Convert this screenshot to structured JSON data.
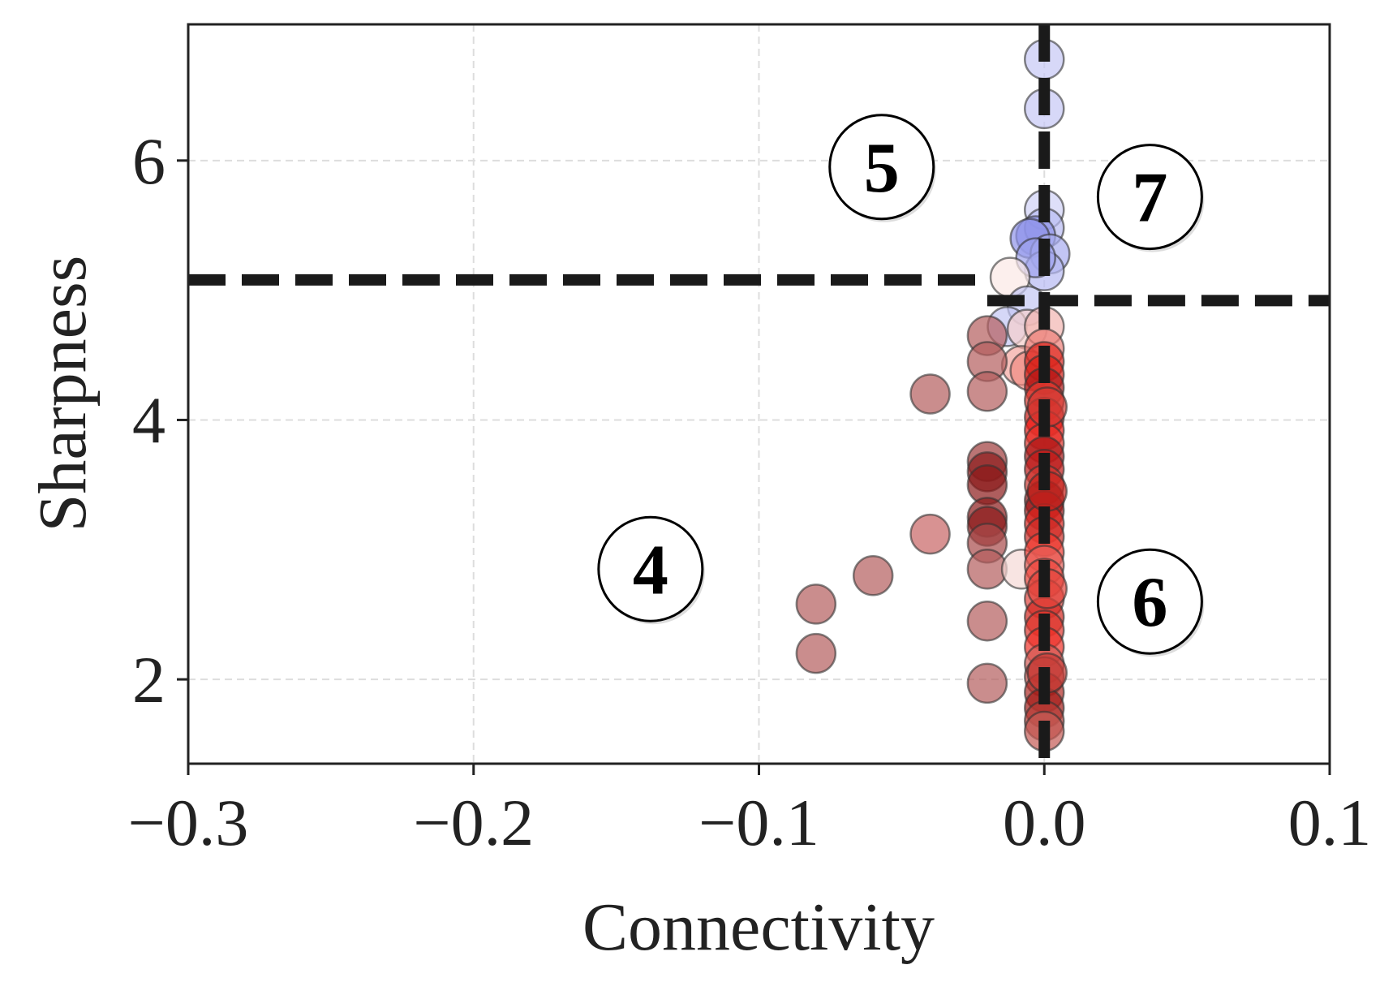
{
  "chart_data": {
    "type": "scatter",
    "xlabel": "Connectivity",
    "ylabel": "Sharpness",
    "xlim": [
      -0.3,
      0.1
    ],
    "ylim": [
      1.35,
      7.05
    ],
    "xticks": [
      -0.3,
      -0.2,
      -0.1,
      0.0,
      0.1
    ],
    "xtick_labels": [
      "−0.3",
      "−0.2",
      "−0.1",
      "0.0",
      "0.1"
    ],
    "yticks": [
      2,
      4,
      6
    ],
    "ytick_labels": [
      "2",
      "4",
      "6"
    ],
    "grid": true,
    "threshold_lines": {
      "vertical_x": 0.0,
      "horizontal_left": {
        "y": 5.08,
        "x_range": [
          -0.3,
          -0.02
        ]
      },
      "horizontal_right": {
        "y": 4.92,
        "x_range": [
          -0.02,
          0.1
        ]
      }
    },
    "region_labels": [
      {
        "text": "5",
        "x": -0.057,
        "y": 5.95
      },
      {
        "text": "7",
        "x": 0.037,
        "y": 5.72
      },
      {
        "text": "4",
        "x": -0.138,
        "y": 2.85
      },
      {
        "text": "6",
        "x": 0.037,
        "y": 2.6
      }
    ],
    "points": [
      {
        "x": 0.0,
        "y": 6.78,
        "color": "#c6c8f5"
      },
      {
        "x": 0.0,
        "y": 6.4,
        "color": "#c6c8f5"
      },
      {
        "x": 0.0,
        "y": 5.62,
        "color": "#d0d2f6"
      },
      {
        "x": 0.0,
        "y": 5.48,
        "color": "#b8bbf2"
      },
      {
        "x": -0.003,
        "y": 5.42,
        "color": "#8f93ea"
      },
      {
        "x": -0.005,
        "y": 5.4,
        "color": "#8f93ea"
      },
      {
        "x": 0.002,
        "y": 5.28,
        "color": "#a8acf0"
      },
      {
        "x": 0.0,
        "y": 5.15,
        "color": "#b6b9f2"
      },
      {
        "x": -0.003,
        "y": 5.25,
        "color": "#9ea2ee"
      },
      {
        "x": -0.012,
        "y": 5.1,
        "color": "#fbe8e6"
      },
      {
        "x": -0.006,
        "y": 4.88,
        "color": "#c3c6f4"
      },
      {
        "x": -0.013,
        "y": 4.72,
        "color": "#c3c6f4"
      },
      {
        "x": -0.006,
        "y": 4.7,
        "color": "#f5cfcc"
      },
      {
        "x": -0.008,
        "y": 4.42,
        "color": "#f3a6a0"
      },
      {
        "x": -0.005,
        "y": 4.38,
        "color": "#f08a82"
      },
      {
        "x": -0.02,
        "y": 4.65,
        "color": "#b35d5d"
      },
      {
        "x": -0.02,
        "y": 4.45,
        "color": "#b35d5d"
      },
      {
        "x": -0.02,
        "y": 4.22,
        "color": "#b35d5d"
      },
      {
        "x": -0.04,
        "y": 4.2,
        "color": "#b35d5d"
      },
      {
        "x": -0.02,
        "y": 3.68,
        "color": "#9e3b3b"
      },
      {
        "x": -0.02,
        "y": 3.6,
        "color": "#8b1a1a"
      },
      {
        "x": -0.02,
        "y": 3.5,
        "color": "#8b1a1a"
      },
      {
        "x": -0.02,
        "y": 3.25,
        "color": "#8b1a1a"
      },
      {
        "x": -0.02,
        "y": 3.18,
        "color": "#8b1a1a"
      },
      {
        "x": -0.02,
        "y": 3.05,
        "color": "#a84a4a"
      },
      {
        "x": -0.02,
        "y": 2.85,
        "color": "#b35d5d"
      },
      {
        "x": -0.02,
        "y": 2.45,
        "color": "#b35d5d"
      },
      {
        "x": -0.02,
        "y": 1.97,
        "color": "#b35d5d"
      },
      {
        "x": -0.04,
        "y": 3.12,
        "color": "#c86464"
      },
      {
        "x": -0.06,
        "y": 2.8,
        "color": "#b35d5d"
      },
      {
        "x": -0.08,
        "y": 2.58,
        "color": "#b35d5d"
      },
      {
        "x": -0.08,
        "y": 2.2,
        "color": "#b35d5d"
      },
      {
        "x": -0.008,
        "y": 2.85,
        "color": "#f5d8d5"
      },
      {
        "x": 0.0,
        "y": 4.72,
        "color": "#f2b5b0"
      },
      {
        "x": 0.0,
        "y": 4.55,
        "color": "#ec7d76"
      },
      {
        "x": 0.0,
        "y": 4.45,
        "color": "#e0281f"
      },
      {
        "x": 0.0,
        "y": 4.35,
        "color": "#d81f17"
      },
      {
        "x": 0.0,
        "y": 4.25,
        "color": "#b01515"
      },
      {
        "x": 0.0,
        "y": 4.15,
        "color": "#e63a30"
      },
      {
        "x": 0.0,
        "y": 4.02,
        "color": "#d41a14"
      },
      {
        "x": 0.0,
        "y": 3.92,
        "color": "#f01a14"
      },
      {
        "x": 0.0,
        "y": 3.82,
        "color": "#e5332b"
      },
      {
        "x": 0.0,
        "y": 3.72,
        "color": "#a81414"
      },
      {
        "x": 0.0,
        "y": 3.62,
        "color": "#c21a18"
      },
      {
        "x": 0.0,
        "y": 3.5,
        "color": "#d43a33"
      },
      {
        "x": 0.0,
        "y": 3.38,
        "color": "#8b1212"
      },
      {
        "x": 0.0,
        "y": 3.3,
        "color": "#a61616"
      },
      {
        "x": 0.0,
        "y": 3.2,
        "color": "#e0241c"
      },
      {
        "x": 0.0,
        "y": 3.1,
        "color": "#cf2c26"
      },
      {
        "x": 0.0,
        "y": 2.98,
        "color": "#f23a30"
      },
      {
        "x": 0.0,
        "y": 2.88,
        "color": "#e86058"
      },
      {
        "x": 0.0,
        "y": 2.78,
        "color": "#f04a42"
      },
      {
        "x": 0.0,
        "y": 2.62,
        "color": "#e3423a"
      },
      {
        "x": 0.0,
        "y": 2.48,
        "color": "#d1231c"
      },
      {
        "x": 0.0,
        "y": 2.38,
        "color": "#e0342c"
      },
      {
        "x": 0.0,
        "y": 2.25,
        "color": "#f03028"
      },
      {
        "x": 0.0,
        "y": 2.12,
        "color": "#d65a54"
      },
      {
        "x": 0.0,
        "y": 2.02,
        "color": "#c24a44"
      },
      {
        "x": 0.0,
        "y": 1.9,
        "color": "#b02a24"
      },
      {
        "x": 0.0,
        "y": 1.78,
        "color": "#a21a16"
      },
      {
        "x": 0.0,
        "y": 1.68,
        "color": "#b83c36"
      },
      {
        "x": 0.0,
        "y": 1.6,
        "color": "#c45a54"
      },
      {
        "x": 0.001,
        "y": 4.1,
        "color": "#d43a33"
      },
      {
        "x": 0.001,
        "y": 3.45,
        "color": "#c8221c"
      },
      {
        "x": 0.001,
        "y": 2.7,
        "color": "#e2443c"
      },
      {
        "x": 0.001,
        "y": 2.05,
        "color": "#c83a34"
      }
    ]
  }
}
